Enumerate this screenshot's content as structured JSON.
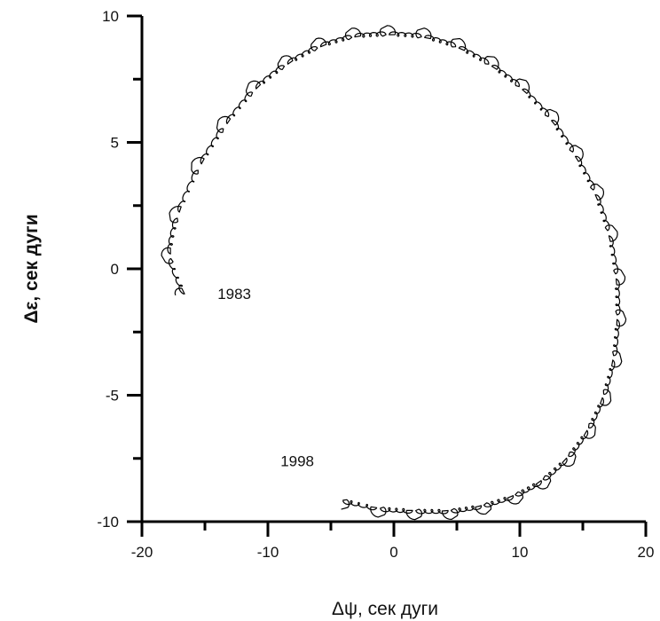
{
  "chart_data": {
    "type": "line",
    "title": "",
    "xlabel": "Δψ, сек дуги",
    "ylabel": "Δε, сек дуги",
    "xlim": [
      -20,
      20
    ],
    "ylim": [
      -10,
      10
    ],
    "xticks": [
      -20,
      -10,
      0,
      10,
      20
    ],
    "yticks": [
      -10,
      -5,
      0,
      5,
      10
    ],
    "grid": false,
    "legend": "none",
    "series": [
      {
        "kind": "nutation-circle-with-annual-loops",
        "x": [
          -16.5,
          -17.6,
          -17.0,
          -15.3,
          -13.3,
          -11.0,
          -8.5,
          -5.9,
          -3.2,
          -0.5,
          2.3,
          5.0,
          7.6,
          10.0,
          12.3,
          14.2,
          15.8,
          16.9,
          17.5,
          17.6,
          17.3,
          16.5,
          15.3,
          13.7,
          11.7,
          9.5,
          7.0,
          4.4,
          1.6,
          -1.2,
          -4.0
        ],
        "y": [
          -1.0,
          0.5,
          2.1,
          4.0,
          5.6,
          7.0,
          8.0,
          8.7,
          9.1,
          9.2,
          9.1,
          8.7,
          8.0,
          7.1,
          5.9,
          4.5,
          3.0,
          1.4,
          -0.3,
          -1.9,
          -3.5,
          -5.0,
          -6.3,
          -7.4,
          -8.3,
          -8.9,
          -9.3,
          -9.5,
          -9.5,
          -9.4,
          -9.1
        ]
      }
    ],
    "annotations": [
      {
        "text": "1983",
        "x": -14.0,
        "y": -1.2
      },
      {
        "text": "1998",
        "x": -9.0,
        "y": -7.8
      }
    ]
  }
}
